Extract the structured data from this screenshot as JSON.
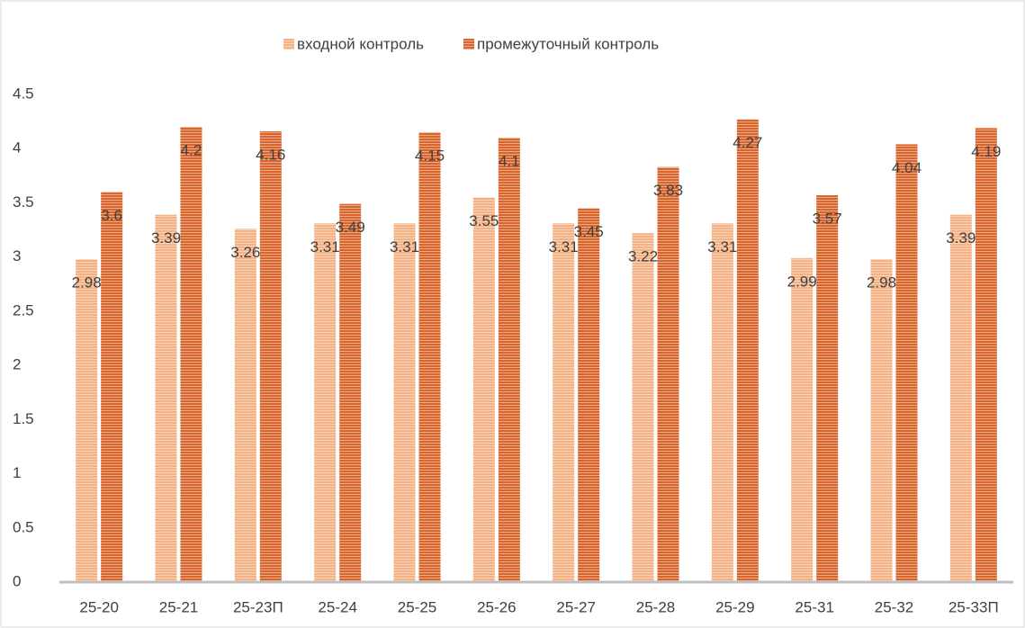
{
  "chart_data": {
    "type": "bar",
    "categories": [
      "25-20",
      "25-21",
      "25-23П",
      "25-24",
      "25-25",
      "25-26",
      "25-27",
      "25-28",
      "25-29",
      "25-31",
      "25-32",
      "25-33П"
    ],
    "series": [
      {
        "name": "входной контроль",
        "color": "#f4b183",
        "values": [
          2.98,
          3.39,
          3.26,
          3.31,
          3.31,
          3.55,
          3.31,
          3.22,
          3.31,
          2.99,
          2.98,
          3.39
        ]
      },
      {
        "name": "промежуточный контроль",
        "color": "#d9652a",
        "values": [
          3.6,
          4.2,
          4.16,
          3.49,
          4.15,
          4.1,
          3.45,
          3.83,
          4.27,
          3.57,
          4.04,
          4.19
        ]
      }
    ],
    "ylim": [
      0,
      4.5
    ],
    "yticks": [
      0,
      0.5,
      1,
      1.5,
      2,
      2.5,
      3,
      3.5,
      4,
      4.5
    ],
    "grid": false,
    "legend": "top"
  }
}
